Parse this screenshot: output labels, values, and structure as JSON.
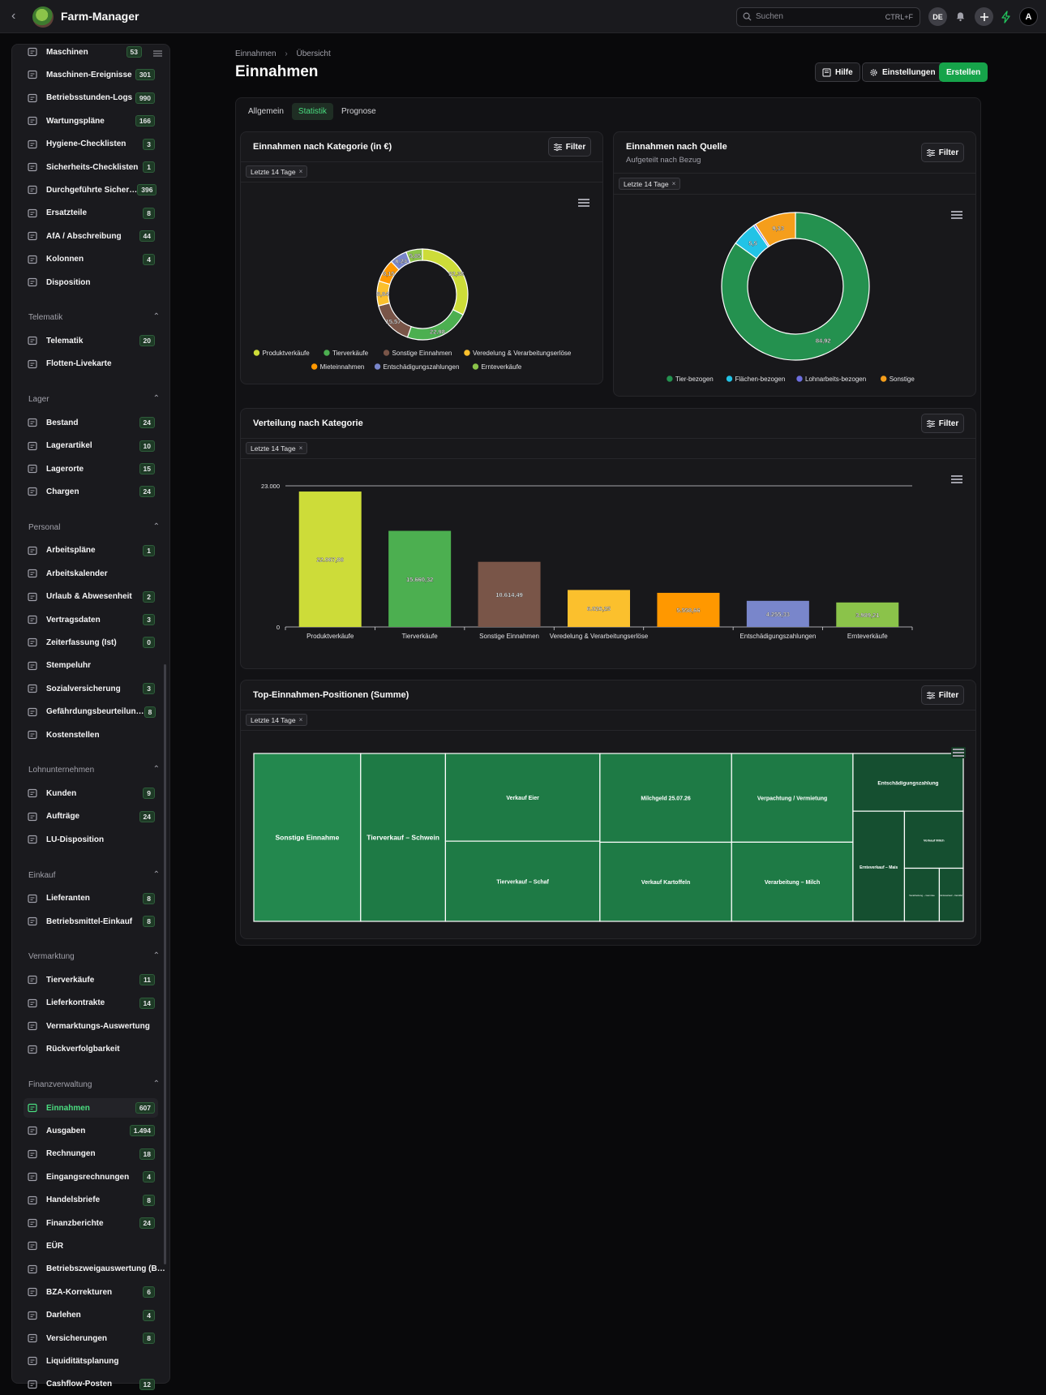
{
  "app": {
    "title": "Farm-Manager",
    "lang": "DE",
    "user_initial": "A"
  },
  "search": {
    "placeholder": "Suchen",
    "shortcut": "CTRL+F"
  },
  "sidebar": {
    "items_top": [
      {
        "label": "Maschinen",
        "count": "53",
        "icon": "tractor-icon"
      },
      {
        "label": "Maschinen-Ereignisse",
        "count": "301",
        "icon": "tools-icon"
      },
      {
        "label": "Betriebsstunden-Logs",
        "count": "990",
        "icon": "clock-icon"
      },
      {
        "label": "Wartungspläne",
        "count": "166",
        "icon": "wrench-icon"
      },
      {
        "label": "Hygiene-Checklisten",
        "count": "3",
        "icon": "checklist-icon"
      },
      {
        "label": "Sicherheits-Checklisten",
        "count": "1",
        "icon": "clipboard-check-icon"
      },
      {
        "label": "Durchgeführte Sicher…",
        "count": "396",
        "icon": "clipboard-icon"
      },
      {
        "label": "Ersatzteile",
        "count": "8",
        "icon": "gear-icon"
      },
      {
        "label": "AfA / Abschreibung",
        "count": "44",
        "icon": "trend-icon"
      },
      {
        "label": "Kolonnen",
        "count": "4",
        "icon": "truck-icon"
      },
      {
        "label": "Disposition",
        "count": "",
        "icon": "calendar-icon"
      }
    ],
    "sections": [
      {
        "title": "Telematik",
        "items": [
          {
            "label": "Telematik",
            "count": "20",
            "icon": "satellite-icon"
          },
          {
            "label": "Flotten-Livekarte",
            "count": "",
            "icon": "target-icon"
          }
        ]
      },
      {
        "title": "Lager",
        "items": [
          {
            "label": "Bestand",
            "count": "24",
            "icon": "box-icon"
          },
          {
            "label": "Lagerartikel",
            "count": "10",
            "icon": "package-icon"
          },
          {
            "label": "Lagerorte",
            "count": "15",
            "icon": "warehouse-icon"
          },
          {
            "label": "Chargen",
            "count": "24",
            "icon": "boxes-icon"
          }
        ]
      },
      {
        "title": "Personal",
        "items": [
          {
            "label": "Arbeitspläne",
            "count": "1",
            "icon": "user-icon"
          },
          {
            "label": "Arbeitskalender",
            "count": "",
            "icon": "calendar-icon"
          },
          {
            "label": "Urlaub & Abwesenheit",
            "count": "2",
            "icon": "calendar-off-icon"
          },
          {
            "label": "Vertragsdaten",
            "count": "3",
            "icon": "contract-icon"
          },
          {
            "label": "Zeiterfassung (Ist)",
            "count": "0",
            "icon": "clock-icon"
          },
          {
            "label": "Stempeluhr",
            "count": "",
            "icon": "clock-icon"
          },
          {
            "label": "Sozialversicherung",
            "count": "3",
            "icon": "id-card-icon"
          },
          {
            "label": "Gefährdungsbeurteilun…",
            "count": "8",
            "icon": "shield-icon"
          },
          {
            "label": "Kostenstellen",
            "count": "",
            "icon": "hierarchy-icon"
          }
        ]
      },
      {
        "title": "Lohnunternehmen",
        "items": [
          {
            "label": "Kunden",
            "count": "9",
            "icon": "users-icon"
          },
          {
            "label": "Aufträge",
            "count": "24",
            "icon": "orders-icon"
          },
          {
            "label": "LU-Disposition",
            "count": "",
            "icon": "calendar-icon"
          }
        ]
      },
      {
        "title": "Einkauf",
        "items": [
          {
            "label": "Lieferanten",
            "count": "8",
            "icon": "truck-icon"
          },
          {
            "label": "Betriebsmittel-Einkauf",
            "count": "8",
            "icon": "cart-icon"
          }
        ]
      },
      {
        "title": "Vermarktung",
        "items": [
          {
            "label": "Tierverkäufe",
            "count": "11",
            "icon": "sale-icon"
          },
          {
            "label": "Lieferkontrakte",
            "count": "14",
            "icon": "contract-icon"
          },
          {
            "label": "Vermarktungs-Auswertung",
            "count": "",
            "icon": "report-icon"
          },
          {
            "label": "Rückverfolgbarkeit",
            "count": "",
            "icon": "link-icon"
          }
        ]
      },
      {
        "title": "Finanzverwaltung",
        "items": [
          {
            "label": "Einnahmen",
            "count": "607",
            "icon": "coins-icon",
            "active": true
          },
          {
            "label": "Ausgaben",
            "count": "1.494",
            "icon": "coins-icon"
          },
          {
            "label": "Rechnungen",
            "count": "18",
            "icon": "invoice-icon"
          },
          {
            "label": "Eingangsrechnungen",
            "count": "4",
            "icon": "invoice-in-icon"
          },
          {
            "label": "Handelsbriefe",
            "count": "8",
            "icon": "letter-icon"
          },
          {
            "label": "Finanzberichte",
            "count": "24",
            "icon": "coins-icon"
          },
          {
            "label": "EÜR",
            "count": "",
            "icon": "calculator-icon"
          },
          {
            "label": "Betriebszweigauswertung (B…",
            "count": "",
            "icon": "report-icon"
          },
          {
            "label": "BZA-Korrekturen",
            "count": "6",
            "icon": "scale-icon"
          },
          {
            "label": "Darlehen",
            "count": "4",
            "icon": "bank-icon"
          },
          {
            "label": "Versicherungen",
            "count": "8",
            "icon": "shield-icon"
          },
          {
            "label": "Liquiditätsplanung",
            "count": "",
            "icon": "chart-icon"
          },
          {
            "label": "Cashflow-Posten",
            "count": "12",
            "icon": "cashflow-icon"
          }
        ]
      }
    ]
  },
  "page": {
    "breadcrumb": [
      "Einnahmen",
      "Übersicht"
    ],
    "title": "Einnahmen",
    "actions": {
      "help": "Hilfe",
      "settings": "Einstellungen",
      "create": "Erstellen"
    },
    "tabs": [
      {
        "label": "Allgemein"
      },
      {
        "label": "Statistik",
        "active": true
      },
      {
        "label": "Prognose"
      }
    ],
    "filter_label": "Filter",
    "filter_chip": "Letzte 14 Tage"
  },
  "cards": {
    "by_category": {
      "title": "Einnahmen nach Kategorie (in €)"
    },
    "by_source": {
      "title": "Einnahmen nach Quelle",
      "subtitle": "Aufgeteilt nach Bezug"
    },
    "distribution": {
      "title": "Verteilung nach Kategorie"
    },
    "top_positions": {
      "title": "Top-Einnahmen-Positionen (Summe)"
    }
  },
  "chart_data": [
    {
      "type": "pie",
      "donut": true,
      "title": "Einnahmen nach Kategorie (in €)",
      "categories": [
        "Produktverkäufe",
        "Tierverkäufe",
        "Sonstige Einnahmen",
        "Veredelung & Verarbeitungserlöse",
        "Mieteinnahmen",
        "Entschädigungszahlungen",
        "Ernteverkäufe"
      ],
      "values": [
        32.38,
        22.98,
        15.57,
        8.84,
        8.15,
        6.24,
        5.85
      ],
      "labels": [
        "32,38",
        "22,98",
        "15,57",
        "8,84",
        "8,15",
        "6,24",
        "5,85"
      ],
      "colors": [
        "#cddc39",
        "#4caf50",
        "#795548",
        "#fbc02d",
        "#ff9800",
        "#7986cb",
        "#8bc34a"
      ],
      "legend": "bottom"
    },
    {
      "type": "pie",
      "donut": true,
      "title": "Einnahmen nach Quelle",
      "subtitle": "Aufgeteilt nach Bezug",
      "categories": [
        "Tier-bezogen",
        "Flächen-bezogen",
        "Lohnarbeits-bezogen",
        "Sonstige"
      ],
      "values": [
        84.92,
        5.5,
        0.45,
        9.13
      ],
      "labels": [
        "84,92",
        "5,5",
        "",
        "9,13"
      ],
      "colors": [
        "#24914f",
        "#22c3e6",
        "#6d6fe0",
        "#f59e1b"
      ],
      "legend": "bottom"
    },
    {
      "type": "bar",
      "title": "Verteilung nach Kategorie",
      "categories": [
        "Produktverkäufe",
        "Tierverkäufe",
        "Sonstige Einnahmen",
        "Veredelung & Verarbeitungserlöse",
        "",
        "Entschädigungszahlungen",
        "Ernteverkäufe"
      ],
      "values": [
        22067.86,
        15660.32,
        10614.49,
        6026.25,
        5558.66,
        4255.33,
        3989.21
      ],
      "labels": [
        "22.067,86",
        "15.660,32",
        "10.614,49",
        "6.026,25",
        "5.558,66",
        "4.255,33",
        "3.989,21"
      ],
      "colors": [
        "#cddc39",
        "#4caf50",
        "#795548",
        "#fbc02d",
        "#ff9800",
        "#7986cb",
        "#8bc34a"
      ],
      "ylim": [
        0,
        23000
      ],
      "ytick_labels": [
        "0",
        "23.000"
      ],
      "grid": false
    },
    {
      "type": "treemap",
      "title": "Top-Einnahmen-Positionen (Summe)",
      "categories": [
        "Sonstige Einnahme",
        "Tierverkauf – Schwein",
        "Verkauf Eier",
        "Tierverkauf – Schaf",
        "Milchgeld 25.07.26",
        "Verkauf Kartoffeln",
        "Verpachtung / Vermietung",
        "Verarbeitung – Milch",
        "Entschädigungszahlung",
        "Ernteverkauf – Mais",
        "Verkauf Milch",
        "Verarbeitung – Gemüse",
        "Ernteverkauf – Kartoffel"
      ],
      "values": [
        15.5,
        12.3,
        11.7,
        10.7,
        10.1,
        9.0,
        9.3,
        8.3,
        5.5,
        4.9,
        2.9,
        1.6,
        1.1
      ],
      "colors": {
        "primary": "#23884e",
        "secondary": "#1e7a45",
        "tertiary": "#154f30"
      }
    }
  ]
}
